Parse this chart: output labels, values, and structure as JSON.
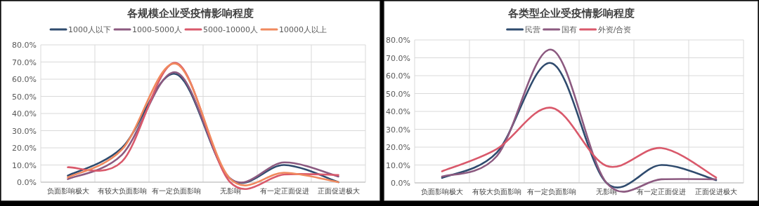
{
  "chart_data": [
    {
      "type": "line",
      "title": "各规模企业受疫情影响程度",
      "categories": [
        "负面影响极大",
        "有较大负面影响",
        "有一定负面影响",
        "无影响",
        "有一定正面促进",
        "正面促进极大"
      ],
      "legend": "top",
      "grid": true,
      "ylim": [
        0,
        80
      ],
      "yticks": [
        {
          "value": 0,
          "label": "0.0%"
        },
        {
          "value": 10,
          "label": "10.0%"
        },
        {
          "value": 20,
          "label": "20.0%"
        },
        {
          "value": 30,
          "label": "30.0%"
        },
        {
          "value": 40,
          "label": "40.0%"
        },
        {
          "value": 50,
          "label": "50.0%"
        },
        {
          "value": 60,
          "label": "60.0%"
        },
        {
          "value": 70,
          "label": "70.0%"
        },
        {
          "value": 80,
          "label": "80.0%"
        }
      ],
      "series": [
        {
          "name": "1000人以下",
          "color": "#2f4b6e",
          "values": [
            3.8,
            20,
            63,
            2,
            10,
            0
          ]
        },
        {
          "name": "1000-5000人",
          "color": "#8c5a80",
          "values": [
            1.8,
            16,
            64,
            2.2,
            11.5,
            3.3
          ]
        },
        {
          "name": "5000-10000人",
          "color": "#d9596b",
          "values": [
            8.7,
            12,
            69.5,
            0,
            4.5,
            4.2
          ]
        },
        {
          "name": "10000人以上",
          "color": "#f0895e",
          "values": [
            2.8,
            19,
            69,
            2,
            5.5,
            0
          ]
        }
      ]
    },
    {
      "type": "line",
      "title": "各类型企业受疫情影响程度",
      "categories": [
        "负面影响极大",
        "有较大负面影响",
        "有一定负面影响",
        "无影响",
        "有一定正面促进",
        "正面促进极大"
      ],
      "legend": "top",
      "grid": true,
      "ylim": [
        0,
        80
      ],
      "yticks": [
        {
          "value": 0,
          "label": "0.0%"
        },
        {
          "value": 10,
          "label": "10.0%"
        },
        {
          "value": 20,
          "label": "20.0%"
        },
        {
          "value": 30,
          "label": "30.0%"
        },
        {
          "value": 40,
          "label": "40.0%"
        },
        {
          "value": 50,
          "label": "50.0%"
        },
        {
          "value": 60,
          "label": "60.0%"
        },
        {
          "value": 70,
          "label": "70.0%"
        },
        {
          "value": 80,
          "label": "80.0%"
        }
      ],
      "series": [
        {
          "name": "民营",
          "color": "#2f4b6e",
          "values": [
            2.8,
            17,
            67,
            0,
            10,
            1.5
          ]
        },
        {
          "name": "国有",
          "color": "#8c5a80",
          "values": [
            3.5,
            15,
            74.5,
            0,
            2,
            2
          ]
        },
        {
          "name": "外资/合资",
          "color": "#d9596b",
          "values": [
            6.5,
            19,
            42,
            9.5,
            19.5,
            3
          ]
        }
      ]
    }
  ]
}
